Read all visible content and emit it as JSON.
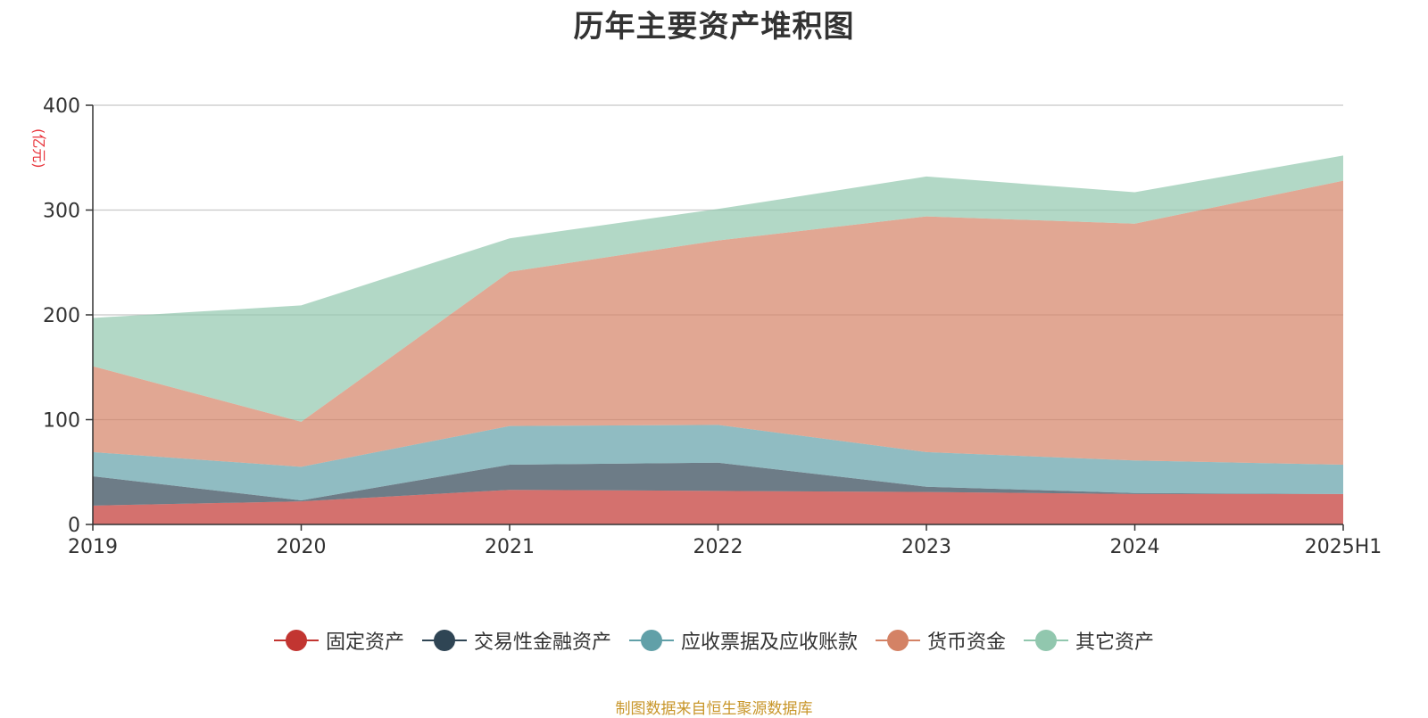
{
  "chart_data": {
    "type": "area",
    "stacked": true,
    "title": "历年主要资产堆积图",
    "unit_label": "(亿元)",
    "x": [
      "2019",
      "2020",
      "2021",
      "2022",
      "2023",
      "2024",
      "2025H1"
    ],
    "ylim": [
      0,
      400
    ],
    "yticks": [
      0,
      100,
      200,
      300,
      400
    ],
    "grid": true,
    "legend_position": "bottom",
    "series": [
      {
        "name": "固定资产",
        "color": "#c23531",
        "values": [
          18,
          22,
          33,
          32,
          31,
          29,
          29
        ]
      },
      {
        "name": "交易性金融资产",
        "color": "#2f4554",
        "values": [
          28,
          1,
          24,
          27,
          5,
          1,
          0
        ]
      },
      {
        "name": "应收票据及应收账款",
        "color": "#61a0a8",
        "values": [
          23,
          32,
          37,
          36,
          33,
          31,
          28
        ]
      },
      {
        "name": "货币资金",
        "color": "#d48265",
        "values": [
          82,
          43,
          147,
          176,
          225,
          226,
          271
        ]
      },
      {
        "name": "其它资产",
        "color": "#91c7ae",
        "values": [
          46,
          111,
          32,
          30,
          38,
          30,
          24
        ]
      }
    ]
  },
  "footer": {
    "source": "制图数据来自恒生聚源数据库"
  }
}
